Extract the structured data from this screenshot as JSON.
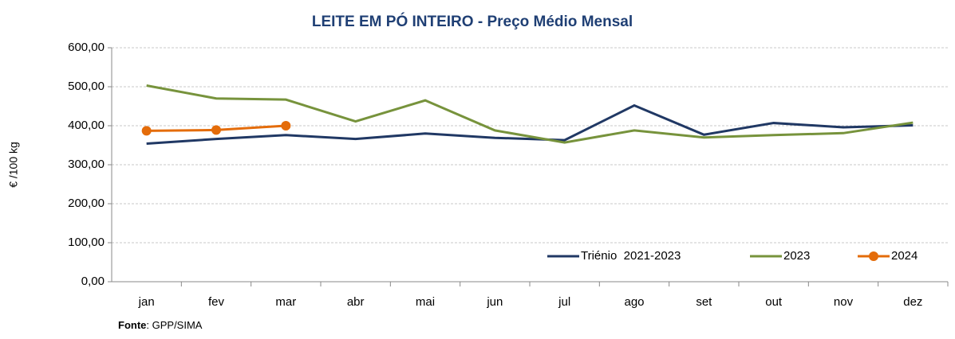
{
  "chart_data": {
    "type": "line",
    "title": "LEITE EM PÓ INTEIRO - Preço Médio Mensal",
    "y_label": "€ /100 kg",
    "source_label": "Fonte",
    "source": ": GPP/SIMA",
    "categories": [
      "jan",
      "fev",
      "mar",
      "abr",
      "mai",
      "jun",
      "jul",
      "ago",
      "set",
      "out",
      "nov",
      "dez"
    ],
    "series": [
      {
        "name": "Triénio  2021-2023",
        "color": "#203864",
        "values": [
          354,
          366,
          376,
          366,
          380,
          369,
          363,
          452,
          377,
          407,
          396,
          401
        ]
      },
      {
        "name": "2023",
        "color": "#77933c",
        "values": [
          503,
          470,
          467,
          411,
          465,
          388,
          357,
          388,
          370,
          376,
          381,
          408
        ]
      },
      {
        "name": "2024",
        "color": "#e46c0a",
        "marker": "circle",
        "values": [
          387,
          389,
          400,
          null,
          null,
          null,
          null,
          null,
          null,
          null,
          null,
          null
        ]
      }
    ],
    "ylim": [
      0,
      600
    ],
    "yticks": [
      {
        "value": 0,
        "label": "0,00"
      },
      {
        "value": 100,
        "label": "100,00"
      },
      {
        "value": 200,
        "label": "200,00"
      },
      {
        "value": 300,
        "label": "300,00"
      },
      {
        "value": 400,
        "label": "400,00"
      },
      {
        "value": 500,
        "label": "500,00"
      },
      {
        "value": 600,
        "label": "600,00"
      }
    ],
    "grid": true,
    "legend": "bottom-right"
  }
}
